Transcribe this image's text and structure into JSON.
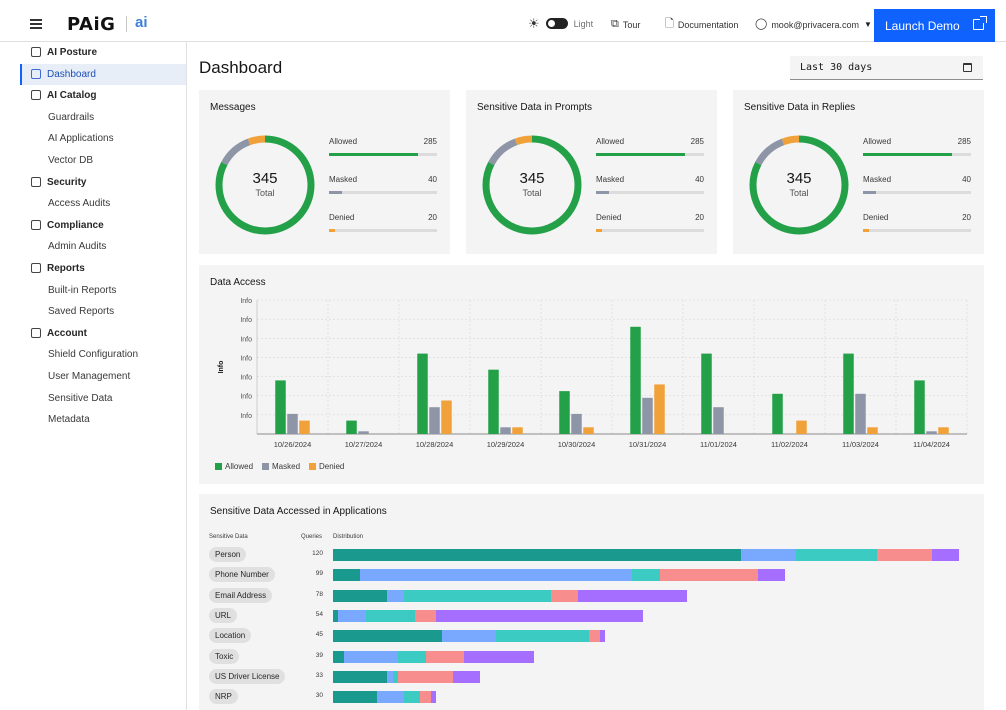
{
  "header": {
    "logo": "PAiG",
    "logo_sub": "ai",
    "theme_label": "Light",
    "tour_label": "Tour",
    "docs_label": "Documentation",
    "user_email": "mook@privacera.com",
    "launch_label": "Launch Demo"
  },
  "sidebar": {
    "items": [
      {
        "label": "AI Posture",
        "level": "top",
        "icon": "posture-icon"
      },
      {
        "label": "Dashboard",
        "level": "top",
        "icon": "dashboard-icon",
        "active": true
      },
      {
        "label": "AI Catalog",
        "level": "top",
        "icon": "catalog-icon"
      },
      {
        "label": "Guardrails",
        "level": "sub"
      },
      {
        "label": "AI Applications",
        "level": "sub"
      },
      {
        "label": "Vector DB",
        "level": "sub"
      },
      {
        "label": "Security",
        "level": "top",
        "icon": "shield-icon"
      },
      {
        "label": "Access Audits",
        "level": "sub"
      },
      {
        "label": "Compliance",
        "level": "top",
        "icon": "compliance-icon"
      },
      {
        "label": "Admin Audits",
        "level": "sub"
      },
      {
        "label": "Reports",
        "level": "top",
        "icon": "reports-icon"
      },
      {
        "label": "Built-in Reports",
        "level": "sub"
      },
      {
        "label": "Saved Reports",
        "level": "sub"
      },
      {
        "label": "Account",
        "level": "top",
        "icon": "account-icon"
      },
      {
        "label": "Shield Configuration",
        "level": "sub"
      },
      {
        "label": "User Management",
        "level": "sub"
      },
      {
        "label": "Sensitive Data",
        "level": "sub"
      },
      {
        "label": "Metadata",
        "level": "sub"
      }
    ]
  },
  "main": {
    "title": "Dashboard",
    "date_range": "Last 30 days"
  },
  "colors": {
    "allowed": "#24a148",
    "masked": "#8d95a6",
    "denied": "#f1a13a",
    "accent": "#0f62fe"
  },
  "summary_cards": [
    {
      "title": "Messages",
      "total": "345",
      "total_label": "Total",
      "stats": [
        {
          "label": "Allowed",
          "value": 285
        },
        {
          "label": "Masked",
          "value": 40
        },
        {
          "label": "Denied",
          "value": 20
        }
      ]
    },
    {
      "title": "Sensitive Data in Prompts",
      "total": "345",
      "total_label": "Total",
      "stats": [
        {
          "label": "Allowed",
          "value": 285
        },
        {
          "label": "Masked",
          "value": 40
        },
        {
          "label": "Denied",
          "value": 20
        }
      ]
    },
    {
      "title": "Sensitive Data in Replies",
      "total": "345",
      "total_label": "Total",
      "stats": [
        {
          "label": "Allowed",
          "value": 285
        },
        {
          "label": "Masked",
          "value": 40
        },
        {
          "label": "Denied",
          "value": 20
        }
      ]
    }
  ],
  "data_access": {
    "title": "Data Access",
    "ylabel": "Info",
    "tick_label": "Info",
    "legend": [
      "Allowed",
      "Masked",
      "Denied"
    ]
  },
  "chart_data": {
    "type": "bar",
    "title": "Data Access",
    "ylabel": "Info",
    "categories": [
      "10/26/2024",
      "10/27/2024",
      "10/28/2024",
      "10/29/2024",
      "10/30/2024",
      "10/31/2024",
      "11/01/2024",
      "11/02/2024",
      "11/03/2024",
      "11/04/2024"
    ],
    "series": [
      {
        "name": "Allowed",
        "values": [
          40,
          10,
          60,
          48,
          32,
          80,
          60,
          30,
          60,
          40
        ]
      },
      {
        "name": "Masked",
        "values": [
          15,
          2,
          20,
          5,
          15,
          27,
          20,
          0,
          30,
          2
        ]
      },
      {
        "name": "Denied",
        "values": [
          10,
          0,
          25,
          5,
          5,
          37,
          0,
          10,
          5,
          5
        ]
      }
    ],
    "ylim": [
      0,
      100
    ],
    "grid": true,
    "legend_position": "bottom-left"
  },
  "sensitive_apps": {
    "title": "Sensitive Data Accessed in Applications",
    "col_sensitive": "Sensitive Data",
    "col_queries": "Queries",
    "col_distribution": "Distribution",
    "palette": [
      "#1a9a8f",
      "#78a9ff",
      "#3ccbc3",
      "#f78d8d",
      "#a56eff"
    ],
    "rows": [
      {
        "label": "Person",
        "queries": "120",
        "segments": [
          75,
          10,
          15,
          10,
          5
        ]
      },
      {
        "label": "Phone Number",
        "queries": "99",
        "segments": [
          5,
          50,
          5,
          18,
          5
        ]
      },
      {
        "label": "Email Address",
        "queries": "78",
        "segments": [
          10,
          3,
          27,
          5,
          20
        ]
      },
      {
        "label": "URL",
        "queries": "54",
        "segments": [
          1,
          5,
          9,
          4,
          38
        ]
      },
      {
        "label": "Location",
        "queries": "45",
        "segments": [
          20,
          10,
          17,
          2,
          1
        ]
      },
      {
        "label": "Toxic",
        "queries": "39",
        "segments": [
          2,
          10,
          5,
          7,
          13
        ]
      },
      {
        "label": "US Driver License",
        "queries": "33",
        "segments": [
          10,
          1,
          1,
          10,
          5
        ]
      },
      {
        "label": "NRP",
        "queries": "30",
        "segments": [
          8,
          5,
          3,
          2,
          1
        ]
      }
    ]
  }
}
